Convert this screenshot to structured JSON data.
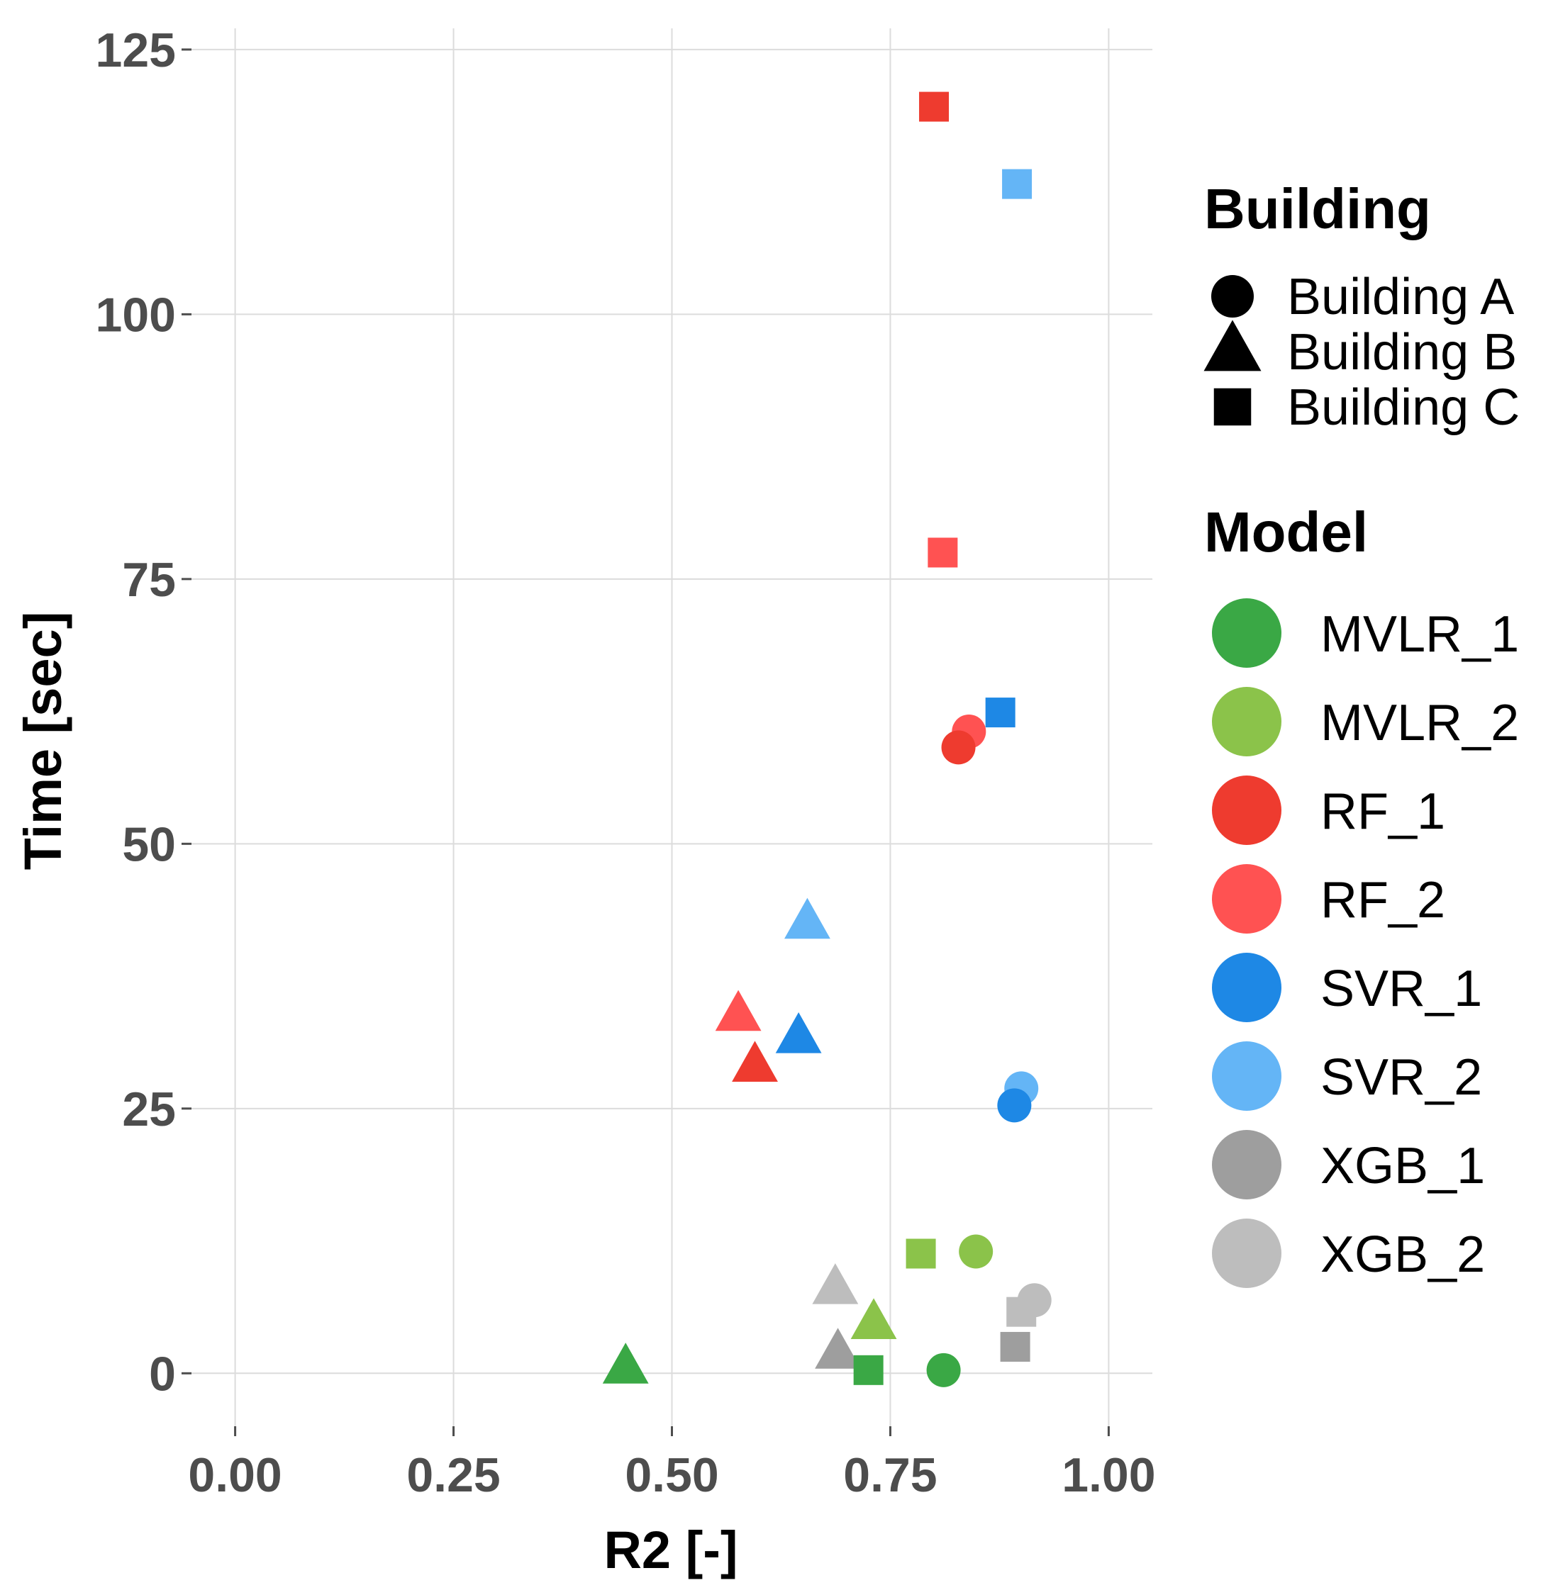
{
  "chart_data": {
    "type": "scatter",
    "xlabel": "R2 [-]",
    "ylabel": "Time [sec]",
    "xlim": [
      -0.05,
      1.05
    ],
    "ylim": [
      -5,
      127
    ],
    "x_ticks": [
      0.0,
      0.25,
      0.5,
      0.75,
      1.0
    ],
    "x_tick_labels": [
      "0.00",
      "0.25",
      "0.50",
      "0.75",
      "1.00"
    ],
    "y_ticks": [
      0,
      25,
      50,
      75,
      100,
      125
    ],
    "y_tick_labels": [
      "0",
      "25",
      "50",
      "75",
      "100",
      "125"
    ],
    "grid": true,
    "legend_position": "right",
    "legend_shape": {
      "title": "Building",
      "entries": [
        {
          "label": "Building A",
          "shape": "circle"
        },
        {
          "label": "Building B",
          "shape": "triangle"
        },
        {
          "label": "Building C",
          "shape": "square"
        }
      ]
    },
    "legend_color": {
      "title": "Model",
      "entries": [
        {
          "label": "MVLR_1",
          "color": "#3aa845"
        },
        {
          "label": "MVLR_2",
          "color": "#8bc34a"
        },
        {
          "label": "RF_1",
          "color": "#ee3b2f"
        },
        {
          "label": "RF_2",
          "color": "#ff5252"
        },
        {
          "label": "SVR_1",
          "color": "#1e88e5"
        },
        {
          "label": "SVR_2",
          "color": "#64b5f6"
        },
        {
          "label": "XGB_1",
          "color": "#9e9e9e"
        },
        {
          "label": "XGB_2",
          "color": "#bdbdbd"
        }
      ]
    },
    "points": [
      {
        "model": "RF_1",
        "building": "Building C",
        "x": 0.8,
        "y": 119.6
      },
      {
        "model": "SVR_2",
        "building": "Building C",
        "x": 0.895,
        "y": 112.3
      },
      {
        "model": "RF_2",
        "building": "Building C",
        "x": 0.81,
        "y": 77.5
      },
      {
        "model": "SVR_1",
        "building": "Building C",
        "x": 0.876,
        "y": 62.4
      },
      {
        "model": "RF_2",
        "building": "Building A",
        "x": 0.84,
        "y": 60.6
      },
      {
        "model": "RF_1",
        "building": "Building A",
        "x": 0.828,
        "y": 59.1
      },
      {
        "model": "SVR_2",
        "building": "Building B",
        "x": 0.655,
        "y": 42.5
      },
      {
        "model": "RF_2",
        "building": "Building B",
        "x": 0.576,
        "y": 33.8
      },
      {
        "model": "SVR_1",
        "building": "Building B",
        "x": 0.645,
        "y": 31.7
      },
      {
        "model": "RF_1",
        "building": "Building B",
        "x": 0.595,
        "y": 29.0
      },
      {
        "model": "SVR_2",
        "building": "Building A",
        "x": 0.9,
        "y": 26.9
      },
      {
        "model": "SVR_1",
        "building": "Building A",
        "x": 0.892,
        "y": 25.3
      },
      {
        "model": "MVLR_2",
        "building": "Building C",
        "x": 0.785,
        "y": 11.3
      },
      {
        "model": "MVLR_2",
        "building": "Building A",
        "x": 0.848,
        "y": 11.5
      },
      {
        "model": "XGB_2",
        "building": "Building B",
        "x": 0.687,
        "y": 8.0
      },
      {
        "model": "XGB_2",
        "building": "Building A",
        "x": 0.915,
        "y": 6.9
      },
      {
        "model": "XGB_2",
        "building": "Building C",
        "x": 0.9,
        "y": 5.8
      },
      {
        "model": "MVLR_2",
        "building": "Building B",
        "x": 0.731,
        "y": 4.7
      },
      {
        "model": "XGB_1",
        "building": "Building C",
        "x": 0.893,
        "y": 2.5
      },
      {
        "model": "XGB_1",
        "building": "Building B",
        "x": 0.69,
        "y": 1.9
      },
      {
        "model": "MVLR_1",
        "building": "Building C",
        "x": 0.725,
        "y": 0.3
      },
      {
        "model": "MVLR_1",
        "building": "Building A",
        "x": 0.811,
        "y": 0.3
      },
      {
        "model": "MVLR_1",
        "building": "Building B",
        "x": 0.447,
        "y": 0.5
      }
    ]
  }
}
